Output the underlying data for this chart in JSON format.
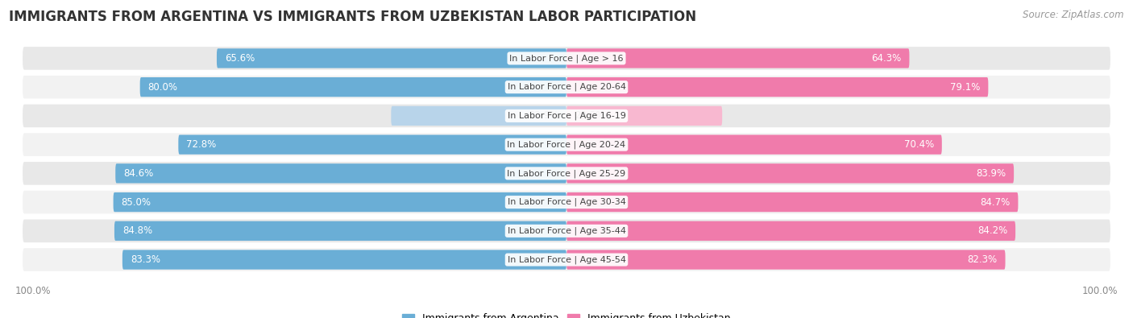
{
  "title": "IMMIGRANTS FROM ARGENTINA VS IMMIGRANTS FROM UZBEKISTAN LABOR PARTICIPATION",
  "source": "Source: ZipAtlas.com",
  "categories": [
    "In Labor Force | Age > 16",
    "In Labor Force | Age 20-64",
    "In Labor Force | Age 16-19",
    "In Labor Force | Age 20-24",
    "In Labor Force | Age 25-29",
    "In Labor Force | Age 30-34",
    "In Labor Force | Age 35-44",
    "In Labor Force | Age 45-54"
  ],
  "argentina_values": [
    65.6,
    80.0,
    32.9,
    72.8,
    84.6,
    85.0,
    84.8,
    83.3
  ],
  "uzbekistan_values": [
    64.3,
    79.1,
    29.2,
    70.4,
    83.9,
    84.7,
    84.2,
    82.3
  ],
  "argentina_color": "#6aaed6",
  "uzbekistan_color": "#f07bab",
  "argentina_color_light": "#b8d4ea",
  "uzbekistan_color_light": "#f8b8d0",
  "row_bg_even": "#e8e8e8",
  "row_bg_odd": "#f2f2f2",
  "label_white": "#ffffff",
  "label_dark": "#666666",
  "title_color": "#333333",
  "source_color": "#999999",
  "title_fontsize": 12,
  "source_fontsize": 8.5,
  "bar_label_fontsize": 8.5,
  "category_fontsize": 8,
  "legend_fontsize": 9,
  "max_value": 100.0,
  "background_color": "#ffffff",
  "axis_label_color": "#888888",
  "axis_label_fontsize": 8.5
}
